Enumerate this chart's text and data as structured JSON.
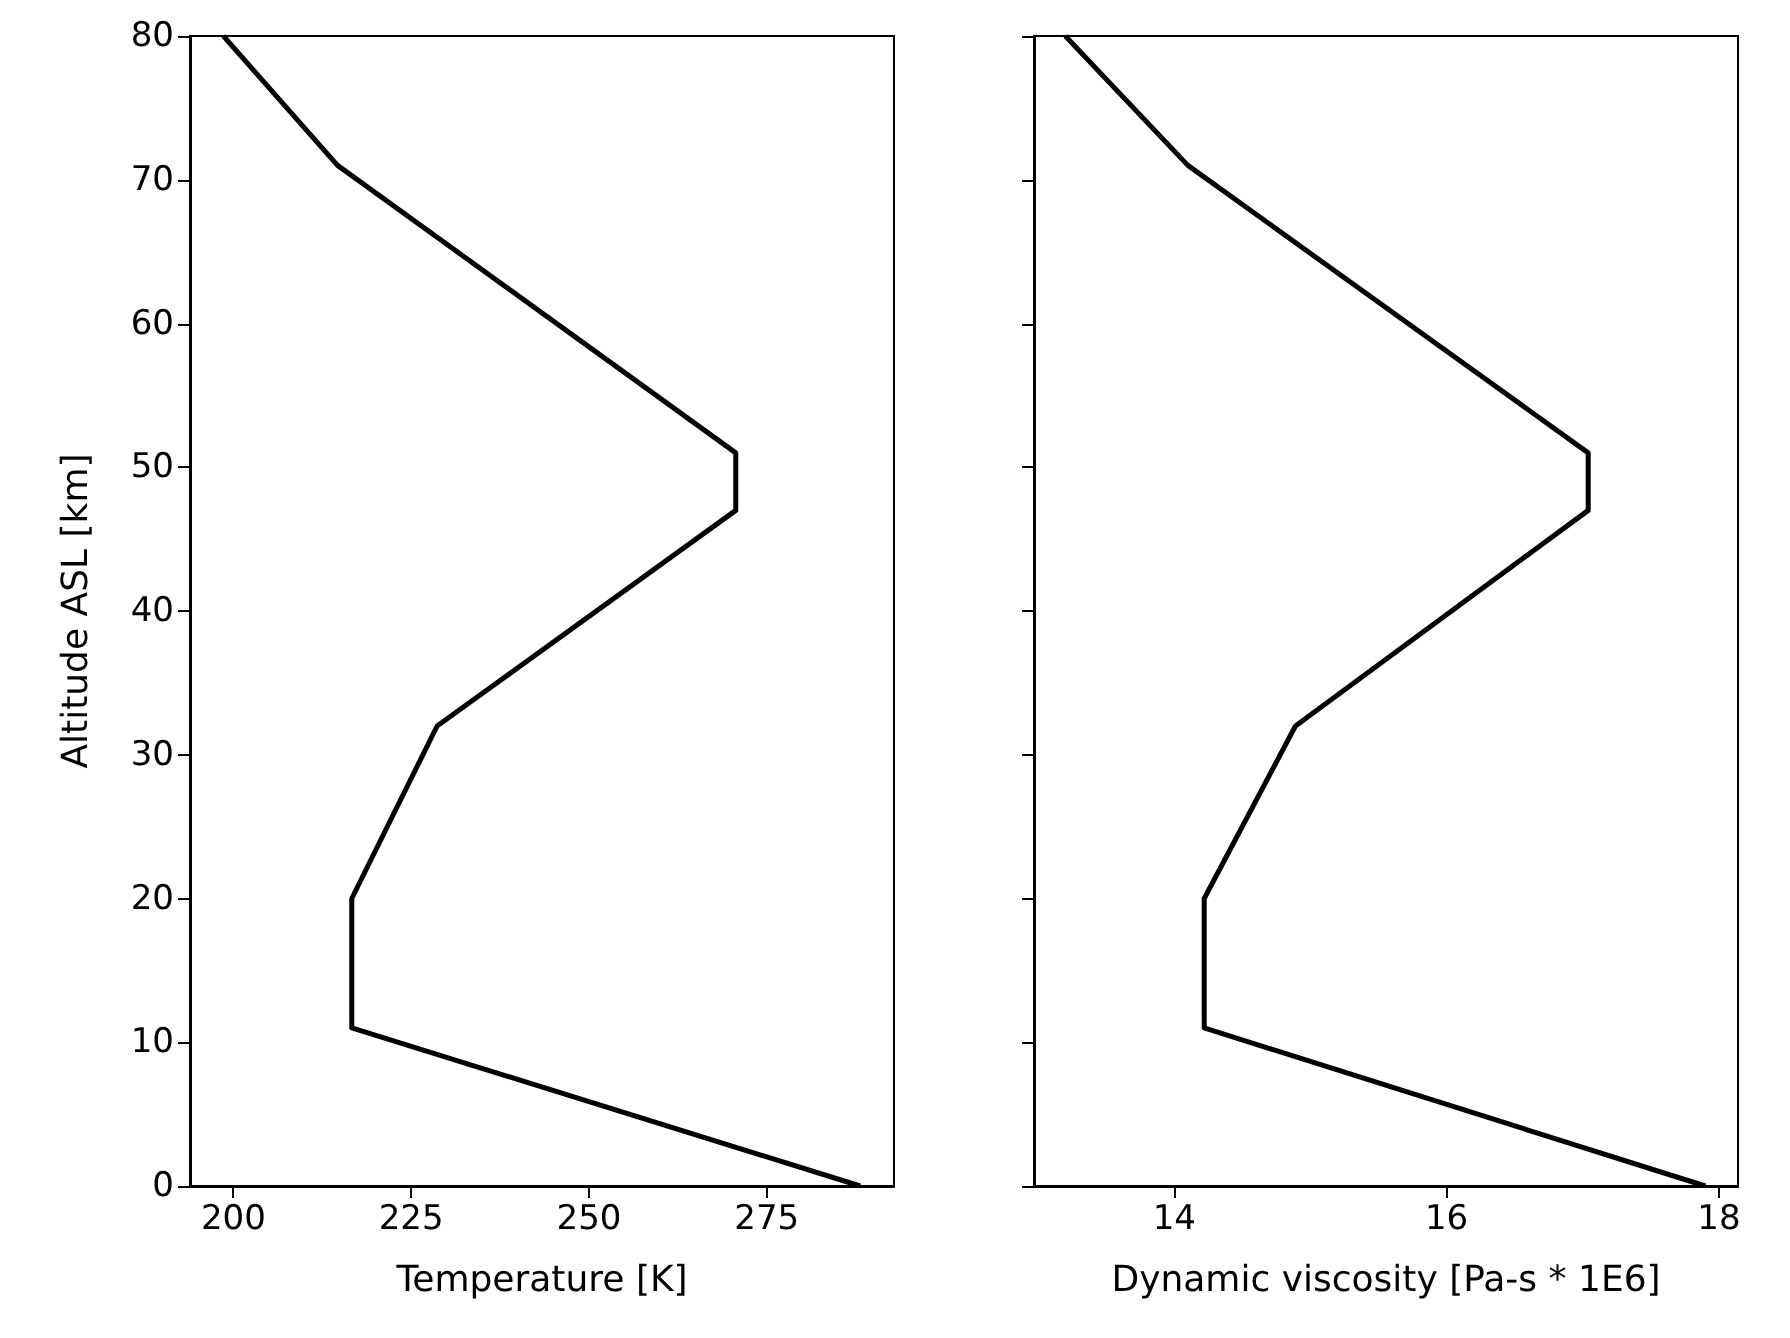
{
  "chart_data": [
    {
      "type": "line",
      "xlabel": "Temperature [K]",
      "ylabel": "Altitude ASL [km]",
      "x": [
        288.15,
        216.65,
        216.65,
        228.65,
        270.65,
        270.65,
        214.65,
        198.6
      ],
      "values": [
        0,
        11,
        20,
        32,
        47,
        51,
        71,
        80
      ],
      "color": "#000000",
      "xlim": [
        193.9,
        292.9
      ],
      "xticks": [
        200,
        225,
        250,
        275
      ],
      "ylim": [
        0,
        80
      ],
      "yticks": [
        0,
        10,
        20,
        30,
        40,
        50,
        60,
        70,
        80
      ],
      "grid": false
    },
    {
      "type": "line",
      "xlabel": "Dynamic viscosity [Pa-s * 1E6]",
      "x": [
        17.9,
        14.22,
        14.22,
        14.89,
        17.04,
        17.04,
        14.1,
        13.2
      ],
      "values": [
        0,
        11,
        20,
        32,
        47,
        51,
        71,
        80
      ],
      "color": "#000000",
      "xlim": [
        12.97,
        18.14
      ],
      "xticks": [
        14,
        16,
        18
      ],
      "ylim": [
        0,
        80
      ],
      "yticks": [
        0,
        10,
        20,
        30,
        40,
        50,
        60,
        70,
        80
      ],
      "grid": false,
      "tick_labels": "x"
    }
  ]
}
